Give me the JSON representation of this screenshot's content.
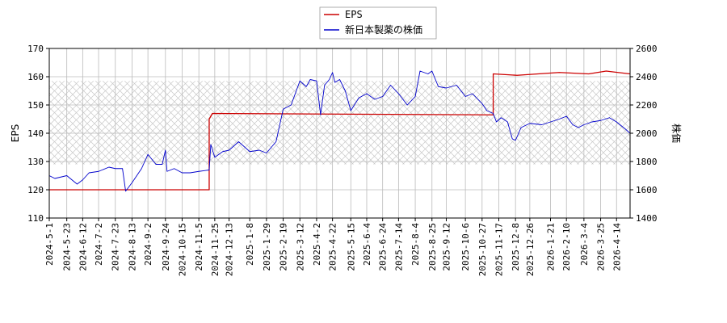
{
  "chart_data": {
    "type": "line",
    "xlabel": "",
    "ylabel_left": "EPS",
    "ylabel_right": "株価",
    "ylim_left": [
      110,
      170
    ],
    "ylim_right": [
      1400,
      2600
    ],
    "yticks_left": [
      "110",
      "120",
      "130",
      "140",
      "150",
      "160",
      "170"
    ],
    "yticks_right": [
      "1400",
      "1600",
      "1800",
      "2000",
      "2200",
      "2400",
      "2600"
    ],
    "x_range": [
      "2024-5-1",
      "2026-5-1"
    ],
    "x_ticks": [
      "2024-5-1",
      "2024-5-23",
      "2024-6-12",
      "2024-7-2",
      "2024-7-23",
      "2024-8-13",
      "2024-9-2",
      "2024-9-24",
      "2024-10-15",
      "2024-11-5",
      "2024-11-25",
      "2024-12-13",
      "2025-1-8",
      "2025-1-29",
      "2025-2-19",
      "2025-3-12",
      "2025-4-2",
      "2025-4-22",
      "2025-5-15",
      "2025-6-4",
      "2025-6-24",
      "2025-7-14",
      "2025-8-4",
      "2025-8-25",
      "2025-9-12",
      "2025-10-6",
      "2025-10-27",
      "2025-11-17",
      "2025-12-8",
      "2025-12-26",
      "2026-1-21",
      "2026-2-10",
      "2026-3-4",
      "2026-3-25",
      "2026-4-14"
    ],
    "grid": true,
    "legend_position": "top-center",
    "hatch_band_right_axis": [
      1780,
      2370
    ],
    "series": [
      {
        "name": "EPS",
        "axis": "left",
        "color": "#cc0000",
        "step": true,
        "points": [
          [
            "2024-5-1",
            120
          ],
          [
            "2024-11-18",
            120
          ],
          [
            "2024-11-18",
            145
          ],
          [
            "2024-11-22",
            147
          ],
          [
            "2025-11-10",
            146.5
          ],
          [
            "2025-11-10",
            161
          ],
          [
            "2025-12-10",
            160.5
          ],
          [
            "2026-2-1",
            161.5
          ],
          [
            "2026-3-10",
            161
          ],
          [
            "2026-4-1",
            162
          ],
          [
            "2026-5-1",
            161
          ]
        ]
      },
      {
        "name": "新日本製薬の株価",
        "axis": "right",
        "color": "#0000cc",
        "step": false,
        "points": [
          [
            "2024-5-1",
            1700
          ],
          [
            "2024-5-8",
            1680
          ],
          [
            "2024-5-23",
            1700
          ],
          [
            "2024-6-5",
            1640
          ],
          [
            "2024-6-12",
            1670
          ],
          [
            "2024-6-20",
            1720
          ],
          [
            "2024-7-2",
            1730
          ],
          [
            "2024-7-15",
            1760
          ],
          [
            "2024-7-23",
            1750
          ],
          [
            "2024-8-1",
            1750
          ],
          [
            "2024-8-5",
            1590
          ],
          [
            "2024-8-13",
            1650
          ],
          [
            "2024-8-25",
            1750
          ],
          [
            "2024-9-2",
            1850
          ],
          [
            "2024-9-12",
            1780
          ],
          [
            "2024-9-20",
            1780
          ],
          [
            "2024-9-24",
            1880
          ],
          [
            "2024-9-26",
            1730
          ],
          [
            "2024-10-5",
            1750
          ],
          [
            "2024-10-15",
            1720
          ],
          [
            "2024-10-25",
            1720
          ],
          [
            "2024-11-5",
            1730
          ],
          [
            "2024-11-18",
            1740
          ],
          [
            "2024-11-20",
            1920
          ],
          [
            "2024-11-25",
            1830
          ],
          [
            "2024-12-5",
            1870
          ],
          [
            "2024-12-13",
            1880
          ],
          [
            "2024-12-25",
            1940
          ],
          [
            "2025-1-8",
            1870
          ],
          [
            "2025-1-20",
            1880
          ],
          [
            "2025-1-29",
            1860
          ],
          [
            "2025-2-10",
            1940
          ],
          [
            "2025-2-19",
            2170
          ],
          [
            "2025-3-1",
            2200
          ],
          [
            "2025-3-12",
            2370
          ],
          [
            "2025-3-20",
            2330
          ],
          [
            "2025-3-25",
            2380
          ],
          [
            "2025-4-2",
            2370
          ],
          [
            "2025-4-7",
            2130
          ],
          [
            "2025-4-12",
            2340
          ],
          [
            "2025-4-18",
            2380
          ],
          [
            "2025-4-22",
            2430
          ],
          [
            "2025-4-25",
            2360
          ],
          [
            "2025-5-1",
            2380
          ],
          [
            "2025-5-8",
            2300
          ],
          [
            "2025-5-15",
            2160
          ],
          [
            "2025-5-25",
            2250
          ],
          [
            "2025-6-4",
            2280
          ],
          [
            "2025-6-14",
            2240
          ],
          [
            "2025-6-24",
            2260
          ],
          [
            "2025-7-4",
            2340
          ],
          [
            "2025-7-14",
            2280
          ],
          [
            "2025-7-25",
            2200
          ],
          [
            "2025-8-4",
            2260
          ],
          [
            "2025-8-10",
            2440
          ],
          [
            "2025-8-20",
            2420
          ],
          [
            "2025-8-25",
            2440
          ],
          [
            "2025-9-2",
            2330
          ],
          [
            "2025-9-12",
            2320
          ],
          [
            "2025-9-25",
            2340
          ],
          [
            "2025-10-6",
            2260
          ],
          [
            "2025-10-15",
            2280
          ],
          [
            "2025-10-27",
            2210
          ],
          [
            "2025-11-2",
            2160
          ],
          [
            "2025-11-10",
            2140
          ],
          [
            "2025-11-14",
            2080
          ],
          [
            "2025-11-20",
            2110
          ],
          [
            "2025-11-28",
            2080
          ],
          [
            "2025-12-4",
            1960
          ],
          [
            "2025-12-8",
            1950
          ],
          [
            "2025-12-15",
            2040
          ],
          [
            "2025-12-26",
            2070
          ],
          [
            "2026-1-10",
            2060
          ],
          [
            "2026-1-21",
            2080
          ],
          [
            "2026-2-1",
            2100
          ],
          [
            "2026-2-10",
            2120
          ],
          [
            "2026-2-18",
            2060
          ],
          [
            "2026-2-25",
            2040
          ],
          [
            "2026-3-4",
            2060
          ],
          [
            "2026-3-14",
            2080
          ],
          [
            "2026-3-25",
            2090
          ],
          [
            "2026-4-5",
            2110
          ],
          [
            "2026-4-14",
            2080
          ],
          [
            "2026-4-25",
            2030
          ],
          [
            "2026-5-1",
            2000
          ]
        ]
      }
    ]
  }
}
